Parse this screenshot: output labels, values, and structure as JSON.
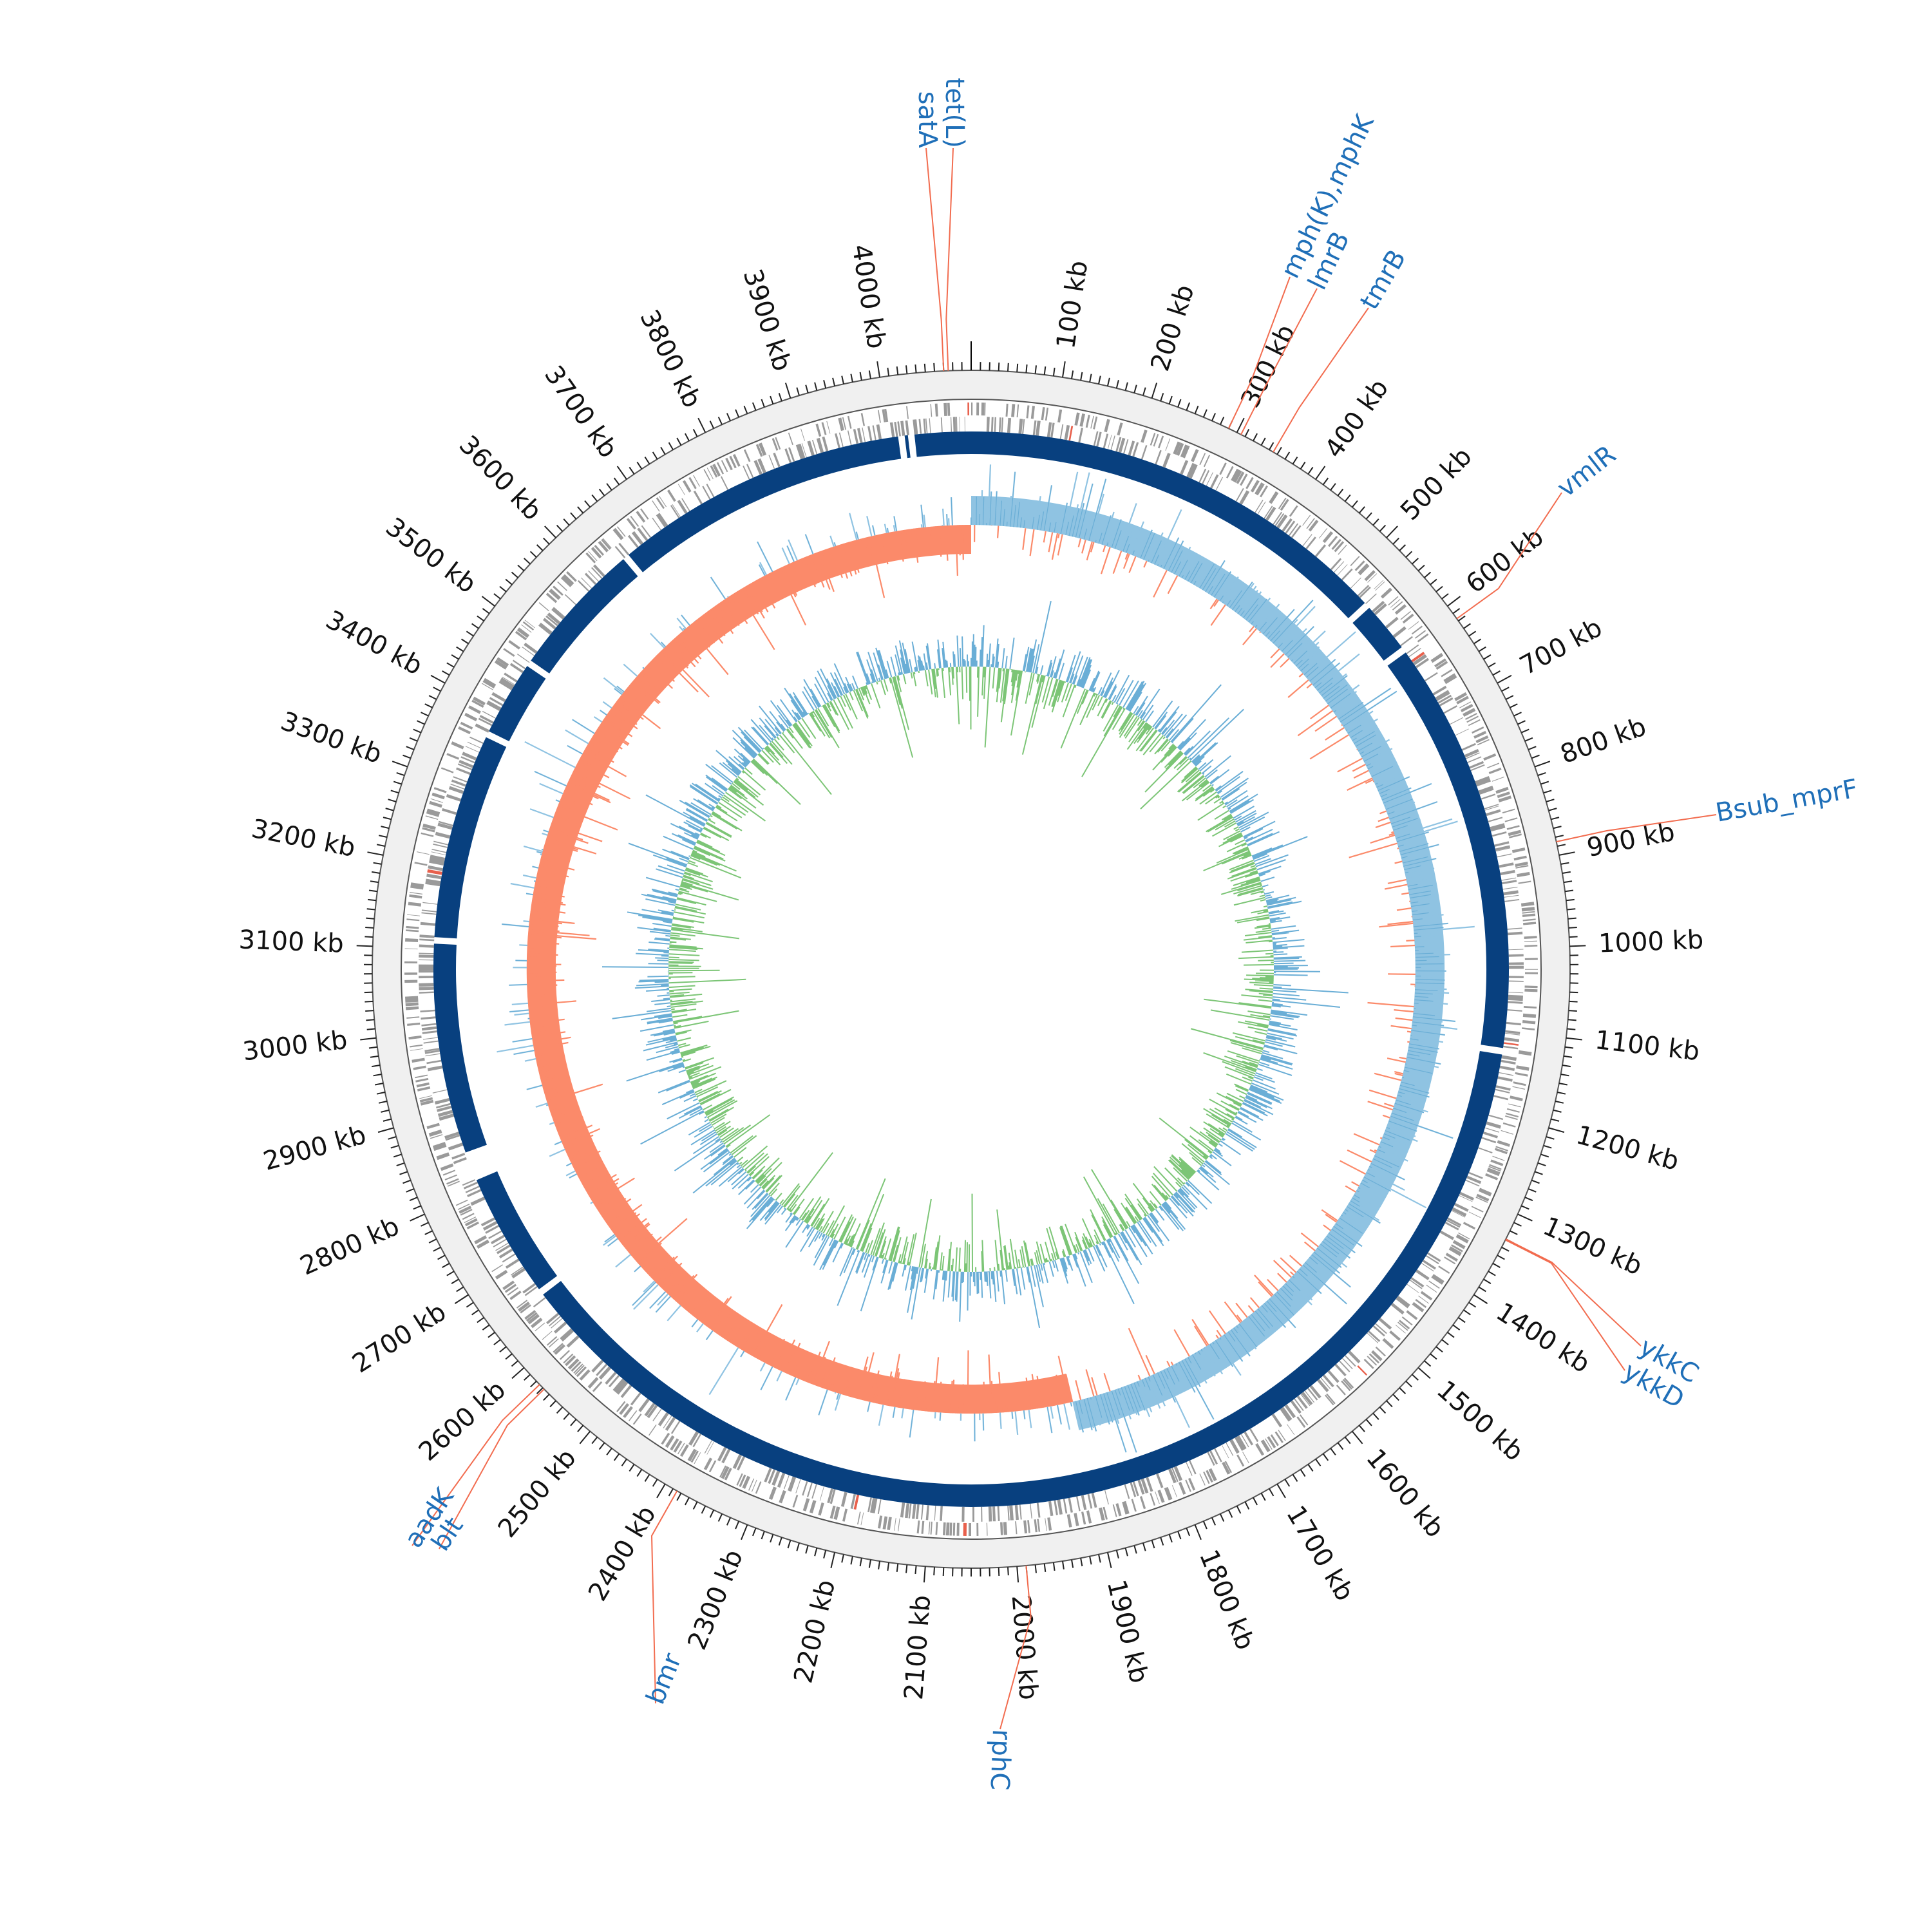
{
  "genome": {
    "length_kb": 4100,
    "tick_major_step_kb": 100,
    "tick_minor_step_kb": 10,
    "tick_labels": [
      "100 kb",
      "200 kb",
      "300 kb",
      "400 kb",
      "500 kb",
      "600 kb",
      "700 kb",
      "800 kb",
      "900 kb",
      "1000 kb",
      "1100 kb",
      "1200 kb",
      "1300 kb",
      "1400 kb",
      "1500 kb",
      "1600 kb",
      "1700 kb",
      "1800 kb",
      "1900 kb",
      "2000 kb",
      "2100 kb",
      "2200 kb",
      "2300 kb",
      "2400 kb",
      "2500 kb",
      "2600 kb",
      "2700 kb",
      "2800 kb",
      "2900 kb",
      "3000 kb",
      "3100 kb",
      "3200 kb",
      "3300 kb",
      "3400 kb",
      "3500 kb",
      "3600 kb",
      "3700 kb",
      "3800 kb",
      "3900 kb",
      "4000 kb"
    ]
  },
  "annotations": [
    {
      "label": "tet(L)",
      "position_kb": 4075
    },
    {
      "label": "satA",
      "position_kb": 4070
    },
    {
      "label": "mph(K),mphK",
      "position_kb": 290
    },
    {
      "label": "lmrB",
      "position_kb": 305
    },
    {
      "label": "tmrB",
      "position_kb": 345
    },
    {
      "label": "vmlR",
      "position_kb": 617
    },
    {
      "label": "Bsub_mprF",
      "position_kb": 885
    },
    {
      "label": "ykkC",
      "position_kb": 1330
    },
    {
      "label": "ykkD",
      "position_kb": 1331
    },
    {
      "label": "rphC",
      "position_kb": 1990
    },
    {
      "label": "bmr",
      "position_kb": 2385
    },
    {
      "label": "aadK",
      "position_kb": 2575
    },
    {
      "label": "blt",
      "position_kb": 2568
    }
  ],
  "contig_gaps_kb": [
    4027,
    4015,
    3645,
    3470,
    3370,
    3110,
    2838,
    2826,
    2655,
    1125,
    610,
    540
  ],
  "colors": {
    "background_ring": "#f0f0f0",
    "ring_outline": "#555555",
    "cds": "#9a9a9a",
    "cds_highlight": "#e8604c",
    "contig": "#08407f",
    "gc_skew_positive": "#8fc3e2",
    "gc_skew_negative": "#fb8a6a",
    "gc_content_high": "#6aaed6",
    "gc_content_low": "#7cc576",
    "annotation_line": "#f26c4f",
    "annotation_text": "#1f6fb8"
  }
}
